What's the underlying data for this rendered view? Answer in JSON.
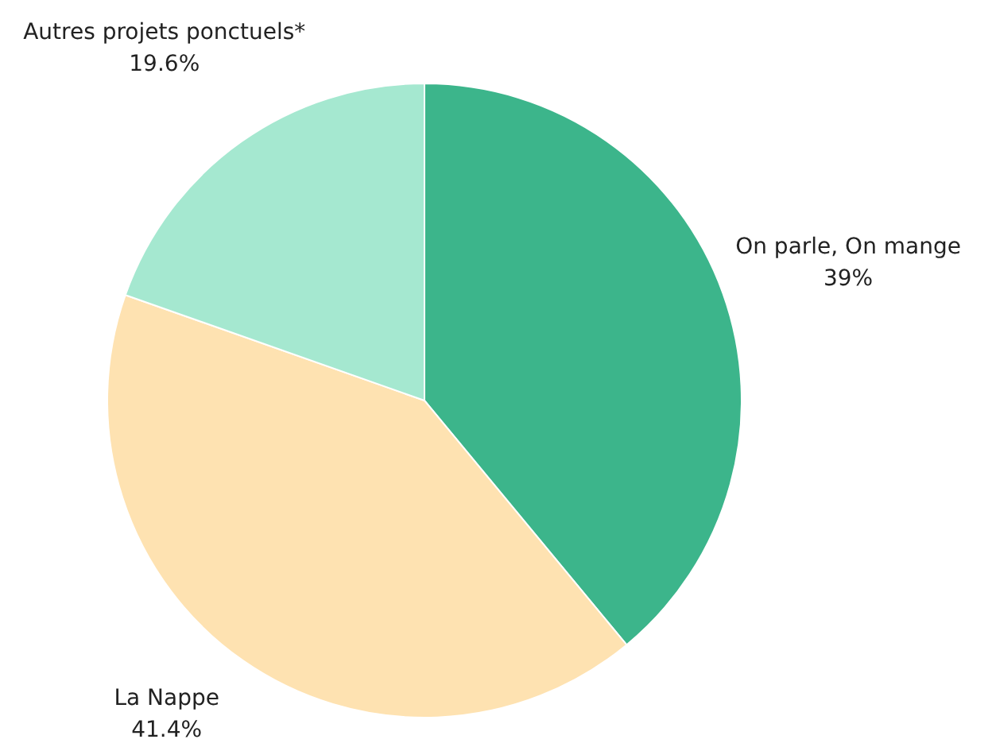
{
  "chart_data": {
    "type": "pie",
    "categories": [
      "On parle, On mange",
      "La Nappe",
      "Autres projets ponctuels*"
    ],
    "values": [
      39,
      41.4,
      19.6
    ],
    "colors": [
      "#3cb58b",
      "#fee2b1",
      "#a5e8d0"
    ],
    "value_labels": [
      "39%",
      "41.4%",
      "19.6%"
    ],
    "legend": false
  }
}
